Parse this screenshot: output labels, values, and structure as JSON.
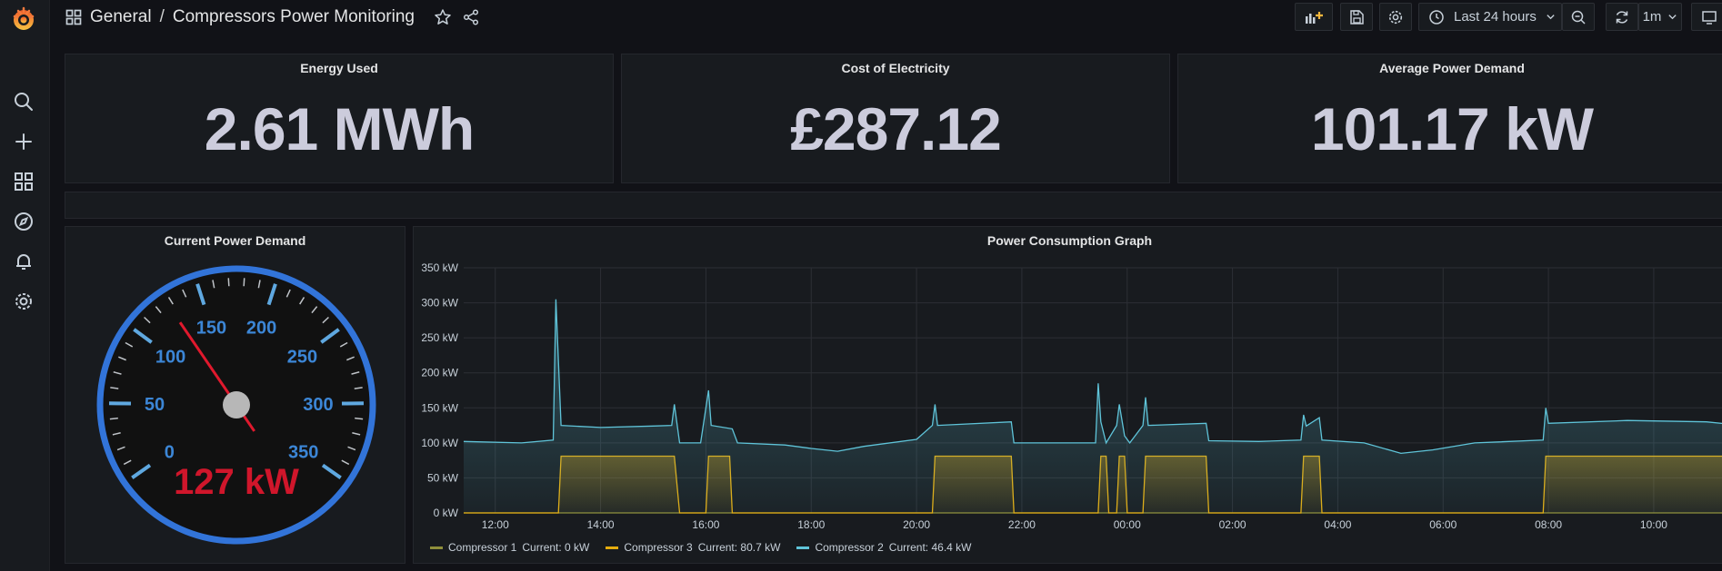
{
  "breadcrumb": {
    "folder": "General",
    "separator": "/",
    "title": "Compressors Power Monitoring"
  },
  "toolbar": {
    "time_range": "Last 24 hours",
    "refresh_interval": "1m"
  },
  "stats": [
    {
      "title": "Energy Used",
      "value": "2.61 MWh"
    },
    {
      "title": "Cost of Electricity",
      "value": "£287.12"
    },
    {
      "title": "Average Power Demand",
      "value": "101.17 kW"
    }
  ],
  "gauge": {
    "title": "Current Power Demand",
    "value": 127,
    "value_label": "127 kW",
    "min": 0,
    "max": 350,
    "ticks": [
      "0",
      "50",
      "100",
      "150",
      "200",
      "250",
      "300",
      "350"
    ],
    "needle_color": "#e0192d",
    "ring_color": "#3274d9"
  },
  "chart_data": {
    "type": "line",
    "title": "Power Consumption Graph",
    "x_ticks": [
      "12:00",
      "14:00",
      "16:00",
      "18:00",
      "20:00",
      "22:00",
      "00:00",
      "02:00",
      "04:00",
      "06:00",
      "08:00",
      "10:00"
    ],
    "y_ticks": [
      "0 kW",
      "50 kW",
      "100 kW",
      "150 kW",
      "200 kW",
      "250 kW",
      "300 kW",
      "350 kW"
    ],
    "ylim": [
      0,
      350
    ],
    "x_hours": [
      11.4,
      35.4
    ],
    "series": [
      {
        "name": "Compressor 1",
        "color": "#8f8f3b",
        "current": "Current: 0 kW",
        "points": [
          [
            11.4,
            0
          ],
          [
            35.4,
            0
          ]
        ]
      },
      {
        "name": "Compressor 3",
        "color": "#e5ac0e",
        "current": "Current: 80.7 kW",
        "points": [
          [
            11.4,
            0
          ],
          [
            13.2,
            0
          ],
          [
            13.25,
            81
          ],
          [
            15.4,
            81
          ],
          [
            15.5,
            0
          ],
          [
            16.0,
            0
          ],
          [
            16.05,
            81
          ],
          [
            16.45,
            81
          ],
          [
            16.5,
            0
          ],
          [
            20.3,
            0
          ],
          [
            20.35,
            81
          ],
          [
            21.8,
            81
          ],
          [
            21.85,
            0
          ],
          [
            23.45,
            0
          ],
          [
            23.5,
            81
          ],
          [
            23.6,
            81
          ],
          [
            23.65,
            0
          ],
          [
            23.8,
            0
          ],
          [
            23.85,
            81
          ],
          [
            23.95,
            81
          ],
          [
            24.0,
            0
          ],
          [
            24.3,
            0
          ],
          [
            24.35,
            81
          ],
          [
            25.5,
            81
          ],
          [
            25.55,
            0
          ],
          [
            27.3,
            0
          ],
          [
            27.35,
            81
          ],
          [
            27.65,
            81
          ],
          [
            27.7,
            0
          ],
          [
            31.9,
            0
          ],
          [
            31.95,
            81
          ],
          [
            35.4,
            81
          ]
        ]
      },
      {
        "name": "Compressor 2",
        "color": "#5fc4d9",
        "current": "Current: 46.4 kW",
        "points": [
          [
            11.4,
            102
          ],
          [
            12.5,
            100
          ],
          [
            13.1,
            104
          ],
          [
            13.15,
            305
          ],
          [
            13.25,
            125
          ],
          [
            14.0,
            122
          ],
          [
            15.0,
            124
          ],
          [
            15.35,
            125
          ],
          [
            15.4,
            155
          ],
          [
            15.5,
            100
          ],
          [
            15.9,
            100
          ],
          [
            16.05,
            175
          ],
          [
            16.1,
            125
          ],
          [
            16.5,
            120
          ],
          [
            16.6,
            100
          ],
          [
            17.5,
            97
          ],
          [
            18.0,
            92
          ],
          [
            18.5,
            88
          ],
          [
            19.0,
            95
          ],
          [
            20.0,
            105
          ],
          [
            20.3,
            125
          ],
          [
            20.35,
            155
          ],
          [
            20.4,
            125
          ],
          [
            21.8,
            130
          ],
          [
            21.85,
            100
          ],
          [
            23.4,
            100
          ],
          [
            23.45,
            185
          ],
          [
            23.5,
            130
          ],
          [
            23.6,
            100
          ],
          [
            23.8,
            125
          ],
          [
            23.85,
            155
          ],
          [
            23.95,
            110
          ],
          [
            24.05,
            100
          ],
          [
            24.3,
            125
          ],
          [
            24.35,
            165
          ],
          [
            24.4,
            125
          ],
          [
            25.5,
            128
          ],
          [
            25.55,
            103
          ],
          [
            26.5,
            102
          ],
          [
            27.3,
            104
          ],
          [
            27.35,
            140
          ],
          [
            27.4,
            124
          ],
          [
            27.65,
            136
          ],
          [
            27.7,
            104
          ],
          [
            28.5,
            100
          ],
          [
            29.2,
            85
          ],
          [
            29.8,
            90
          ],
          [
            30.6,
            100
          ],
          [
            31.9,
            104
          ],
          [
            31.95,
            150
          ],
          [
            32.0,
            128
          ],
          [
            33.5,
            132
          ],
          [
            35.0,
            130
          ],
          [
            35.4,
            127
          ]
        ]
      }
    ]
  }
}
